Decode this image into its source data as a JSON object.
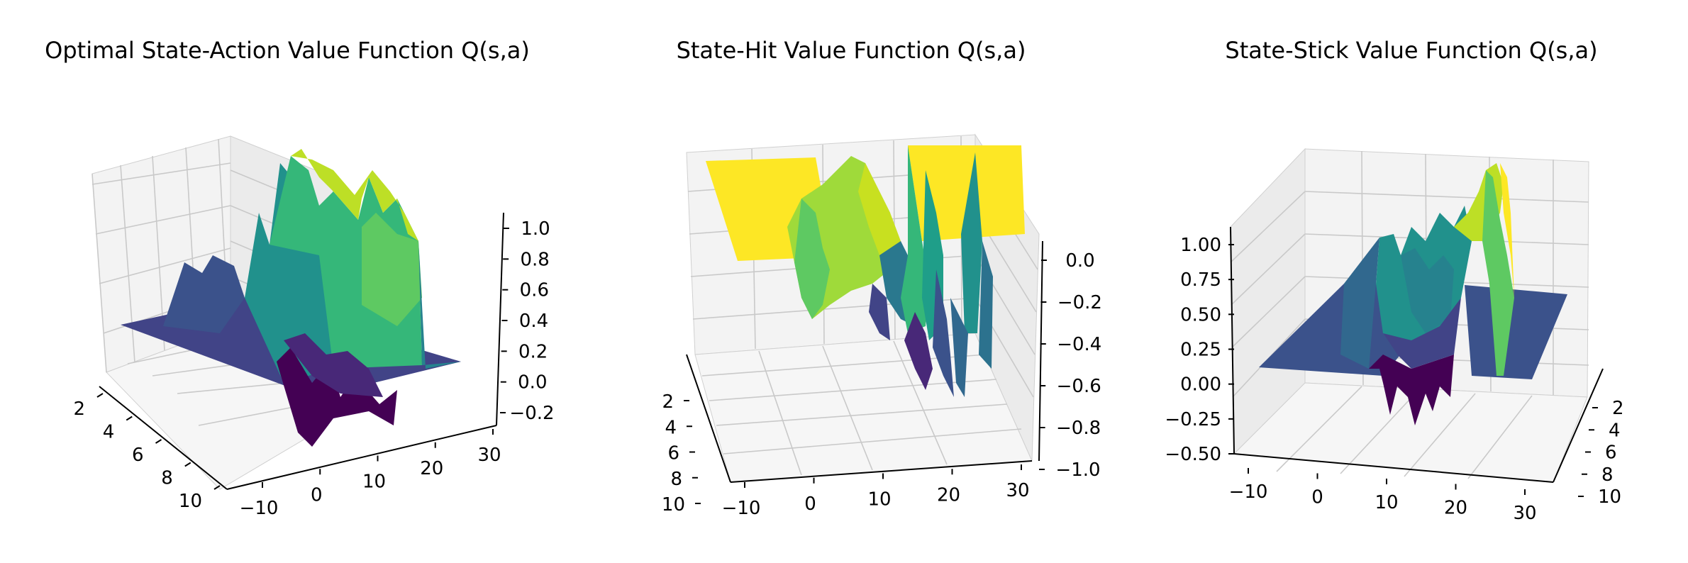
{
  "chart_data": [
    {
      "type": "surface3d",
      "title": "Optimal State-Action Value Function Q(s,a)",
      "x_ticks": [
        "2",
        "4",
        "6",
        "8",
        "10"
      ],
      "y_ticks": [
        "−10",
        "0",
        "10",
        "20",
        "30"
      ],
      "z_ticks": [
        "−0.2",
        "0.0",
        "0.2",
        "0.4",
        "0.6",
        "0.8",
        "1.0"
      ],
      "xlim": [
        1,
        10
      ],
      "ylim": [
        -12,
        32
      ],
      "zlim": [
        -0.3,
        1.05
      ],
      "grid": true,
      "colormap": "viridis",
      "surface": [
        {
          "y_range": [
            -12,
            -3
          ],
          "z": 0.0
        },
        {
          "y_range": [
            -3,
            3
          ],
          "z_range": [
            -0.2,
            0.5
          ]
        },
        {
          "y_range": [
            3,
            18
          ],
          "z_range": [
            -0.3,
            1.0
          ]
        },
        {
          "y_range": [
            18,
            21
          ],
          "z_range": [
            0.3,
            0.9
          ]
        },
        {
          "y_range": [
            21,
            32
          ],
          "z": 0.0
        }
      ]
    },
    {
      "type": "surface3d",
      "title": "State-Hit Value Function Q(s,a)",
      "x_ticks": [
        "2",
        "4",
        "6",
        "8",
        "10"
      ],
      "y_ticks": [
        "−10",
        "0",
        "10",
        "20",
        "30"
      ],
      "z_ticks": [
        "0.0",
        "−0.2",
        "−0.4",
        "−0.6",
        "−0.8",
        "−1.0"
      ],
      "xlim": [
        1,
        10
      ],
      "ylim": [
        -12,
        32
      ],
      "zlim": [
        -1.05,
        0.05
      ],
      "grid": true,
      "colormap": "viridis",
      "surface": [
        {
          "y_range": [
            -12,
            -3
          ],
          "z": 0.0
        },
        {
          "y_range": [
            -3,
            12
          ],
          "z_range": [
            -0.6,
            -0.1
          ]
        },
        {
          "y_range": [
            12,
            18
          ],
          "z_range": [
            -1.0,
            -0.3
          ]
        },
        {
          "y_range": [
            18,
            32
          ],
          "z": 0.0
        }
      ]
    },
    {
      "type": "surface3d",
      "title": "State-Stick Value Function Q(s,a)",
      "x_ticks": [
        "2",
        "4",
        "6",
        "8",
        "10"
      ],
      "y_ticks": [
        "−10",
        "0",
        "10",
        "20",
        "30"
      ],
      "z_ticks": [
        "1.00",
        "0.75",
        "0.50",
        "0.25",
        "0.00",
        "−0.25",
        "−0.50"
      ],
      "xlim": [
        1,
        10
      ],
      "ylim": [
        -12,
        32
      ],
      "zlim": [
        -0.55,
        1.05
      ],
      "grid": true,
      "colormap": "viridis",
      "surface": [
        {
          "y_range": [
            -12,
            0
          ],
          "z": 0.0
        },
        {
          "y_range": [
            0,
            11
          ],
          "z_range": [
            -0.5,
            0.7
          ]
        },
        {
          "y_range": [
            11,
            18
          ],
          "z_range": [
            0.4,
            1.0
          ]
        },
        {
          "y_range": [
            18,
            32
          ],
          "z": 0.0
        }
      ]
    }
  ]
}
